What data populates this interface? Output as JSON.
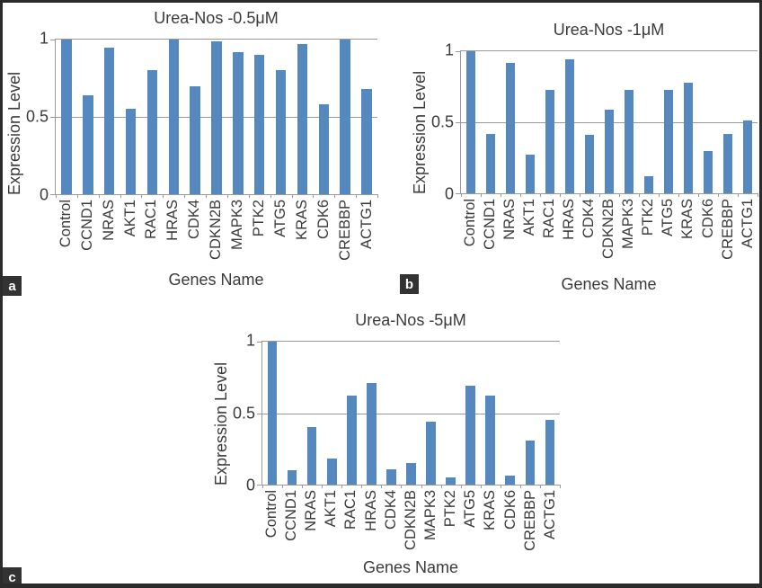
{
  "style": {
    "bar_color": "#5588BE",
    "grid_color": "#999999",
    "text_color": "#3A3A3A",
    "panel_tag_background": "#333333",
    "frame_color": "#2B2B2B"
  },
  "chart_data": [
    {
      "type": "bar",
      "panel_label": "a",
      "title": "Urea-Nos -0.5μM",
      "xlabel": "Genes Name",
      "ylabel": "Expression Level",
      "ylim": [
        0,
        1
      ],
      "ytick_labels": [
        "1",
        "0.5",
        "0"
      ],
      "grid": true,
      "categories": [
        "Control",
        "CCND1",
        "NRAS",
        "AKT1",
        "RAC1",
        "HRAS",
        "CDK4",
        "CDKN2B",
        "MAPK3",
        "PTK2",
        "ATG5",
        "KRAS",
        "CDK6",
        "CREBBP",
        "ACTG1"
      ],
      "values": [
        1.0,
        0.64,
        0.95,
        0.55,
        0.8,
        1.0,
        0.7,
        0.99,
        0.92,
        0.9,
        0.8,
        0.97,
        0.58,
        1.0,
        0.68
      ]
    },
    {
      "type": "bar",
      "panel_label": "b",
      "title": "Urea-Nos -1μM",
      "xlabel": "Genes Name",
      "ylabel": "Expression Level",
      "ylim": [
        0,
        1
      ],
      "ytick_labels": [
        "1",
        "0.5",
        "0"
      ],
      "grid": true,
      "categories": [
        "Control",
        "CCND1",
        "NRAS",
        "AKT1",
        "RAC1",
        "HRAS",
        "CDK4",
        "CDKN2B",
        "MAPK3",
        "PTK2",
        "ATG5",
        "KRAS",
        "CDK6",
        "CREBBP",
        "ACTG1"
      ],
      "values": [
        1.0,
        0.42,
        0.92,
        0.27,
        0.73,
        0.94,
        0.41,
        0.59,
        0.73,
        0.12,
        0.73,
        0.78,
        0.3,
        0.42,
        0.51
      ]
    },
    {
      "type": "bar",
      "panel_label": "c",
      "title": "Urea-Nos -5μM",
      "xlabel": "Genes Name",
      "ylabel": "Expression Level",
      "ylim": [
        0,
        1
      ],
      "ytick_labels": [
        "1",
        "0.5",
        "0"
      ],
      "grid": true,
      "categories": [
        "Control",
        "CCND1",
        "NRAS",
        "AKT1",
        "RAC1",
        "HRAS",
        "CDK4",
        "CDKN2B",
        "MAPK3",
        "PTK2",
        "ATG5",
        "KRAS",
        "CDK6",
        "CREBBP",
        "ACTG1"
      ],
      "values": [
        1.0,
        0.1,
        0.4,
        0.18,
        0.62,
        0.71,
        0.11,
        0.15,
        0.44,
        0.05,
        0.69,
        0.62,
        0.06,
        0.31,
        0.45
      ]
    }
  ]
}
